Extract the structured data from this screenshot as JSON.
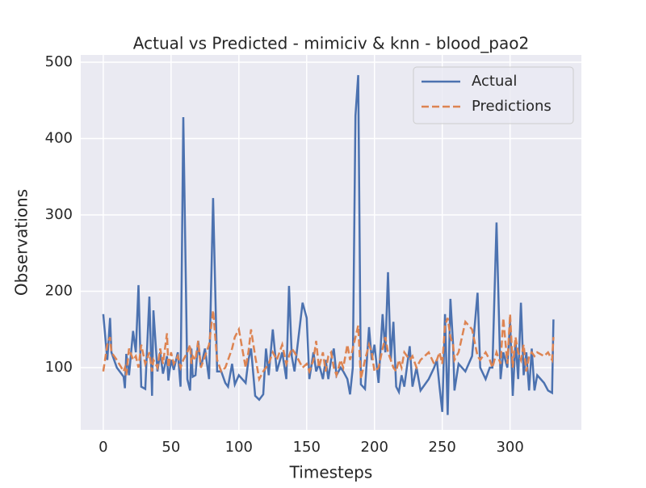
{
  "chart_data": {
    "type": "line",
    "title": "Actual vs Predicted - mimiciv & knn - blood_pao2",
    "x_label": "Timesteps",
    "y_label": "Observations",
    "x": [
      0,
      3,
      5,
      6,
      10,
      15,
      16,
      17,
      19,
      22,
      24,
      26,
      28,
      31,
      34,
      36,
      37,
      40,
      42,
      44,
      47,
      48,
      50,
      52,
      55,
      57,
      59,
      62,
      64,
      65,
      66,
      68,
      70,
      72,
      75,
      78,
      81,
      84,
      87,
      90,
      92,
      95,
      97,
      100,
      105,
      107,
      109,
      112,
      115,
      118,
      120,
      122,
      125,
      128,
      132,
      135,
      137,
      139,
      141,
      144,
      147,
      150,
      152,
      155,
      157,
      159,
      162,
      164,
      166,
      168,
      170,
      172,
      175,
      177,
      180,
      182,
      184,
      186,
      188,
      190,
      193,
      196,
      198,
      200,
      203,
      206,
      208,
      210,
      212,
      214,
      216,
      218,
      220,
      222,
      226,
      228,
      231,
      234,
      240,
      244,
      246,
      248,
      250,
      252,
      254,
      256,
      258,
      259,
      262,
      267,
      272,
      276,
      278,
      282,
      285,
      287,
      290,
      293,
      295,
      298,
      300,
      302,
      304,
      306,
      308,
      310,
      312,
      314,
      316,
      318,
      320,
      325,
      328,
      331,
      332
    ],
    "series": [
      {
        "name": "Actual",
        "color": "#4c72b0",
        "dashed": false,
        "values": [
          170,
          110,
          165,
          120,
          100,
          88,
          73,
          118,
          90,
          148,
          120,
          208,
          75,
          72,
          193,
          63,
          175,
          95,
          120,
          92,
          115,
          83,
          110,
          97,
          120,
          75,
          428,
          85,
          70,
          125,
          88,
          90,
          135,
          100,
          125,
          85,
          322,
          95,
          95,
          80,
          75,
          105,
          78,
          90,
          80,
          110,
          125,
          63,
          58,
          65,
          125,
          90,
          150,
          95,
          120,
          85,
          207,
          115,
          95,
          140,
          185,
          165,
          85,
          120,
          95,
          105,
          85,
          110,
          85,
          110,
          125,
          90,
          100,
          95,
          85,
          65,
          100,
          430,
          483,
          78,
          72,
          153,
          110,
          130,
          80,
          170,
          120,
          225,
          110,
          160,
          75,
          68,
          90,
          75,
          128,
          75,
          100,
          70,
          85,
          100,
          110,
          75,
          42,
          170,
          38,
          190,
          130,
          70,
          105,
          95,
          115,
          198,
          100,
          85,
          100,
          100,
          290,
          85,
          120,
          100,
          160,
          63,
          135,
          85,
          185,
          90,
          120,
          70,
          125,
          70,
          90,
          80,
          70,
          67,
          163
        ]
      },
      {
        "name": "Predictions",
        "color": "#dd8452",
        "dashed": true,
        "values": [
          95,
          130,
          140,
          120,
          110,
          95,
          100,
          90,
          125,
          110,
          115,
          100,
          130,
          105,
          120,
          95,
          110,
          100,
          125,
          105,
          145,
          100,
          120,
          105,
          115,
          100,
          110,
          120,
          130,
          105,
          115,
          110,
          135,
          100,
          115,
          130,
          175,
          110,
          95,
          100,
          110,
          125,
          140,
          150,
          100,
          120,
          150,
          115,
          85,
          95,
          100,
          105,
          120,
          110,
          130,
          105,
          115,
          125,
          120,
          110,
          100,
          105,
          95,
          110,
          135,
          100,
          120,
          95,
          115,
          120,
          100,
          90,
          110,
          100,
          130,
          110,
          125,
          140,
          155,
          85,
          110,
          130,
          120,
          95,
          100,
          125,
          140,
          120,
          110,
          100,
          95,
          110,
          100,
          120,
          110,
          115,
          100,
          110,
          120,
          105,
          110,
          120,
          105,
          155,
          165,
          140,
          130,
          110,
          120,
          160,
          150,
          115,
          110,
          120,
          110,
          100,
          120,
          105,
          165,
          105,
          170,
          100,
          140,
          120,
          110,
          130,
          95,
          115,
          120,
          115,
          120,
          115,
          120,
          110,
          140
        ]
      }
    ],
    "xlim": [
      -16.6,
      352.6
    ],
    "ylim": [
      18.5,
      509.5
    ],
    "xticks": [
      0,
      50,
      100,
      150,
      200,
      250,
      300
    ],
    "yticks": [
      100,
      200,
      300,
      400,
      500
    ],
    "grid": true,
    "legend": "upper right"
  }
}
